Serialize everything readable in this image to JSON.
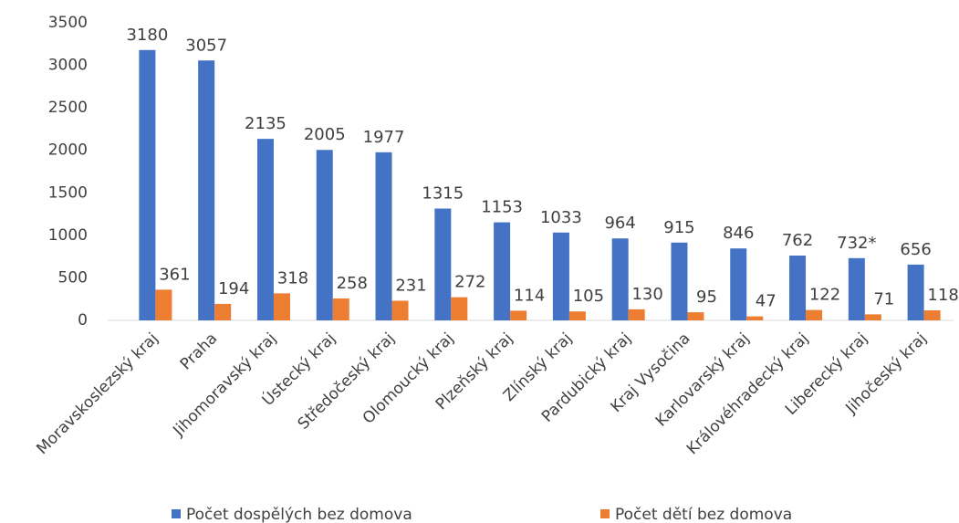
{
  "chart_data": {
    "type": "bar",
    "categories": [
      "Moravskoslezský kraj",
      "Praha",
      "Jihomoravský kraj",
      "Ústecký kraj",
      "Středočeský kraj",
      "Olomoucký kraj",
      "Plzeňský kraj",
      "Zlínský kraj",
      "Pardubický kraj",
      "Kraj Vysočina",
      "Karlovarský kraj",
      "Královéhradecký kraj",
      "Liberecký kraj",
      "Jihočeský kraj"
    ],
    "series": [
      {
        "name": "Počet dospělých bez domova",
        "color": "#4472c4",
        "values": [
          3180,
          3057,
          2135,
          2005,
          1977,
          1315,
          1153,
          1033,
          964,
          915,
          846,
          762,
          732,
          656
        ],
        "value_labels": [
          "3180",
          "3057",
          "2135",
          "2005",
          "1977",
          "1315",
          "1153",
          "1033",
          "964",
          "915",
          "846",
          "762",
          "732*",
          "656"
        ]
      },
      {
        "name": "Počet dětí bez domova",
        "color": "#ed7d31",
        "values": [
          361,
          194,
          318,
          258,
          231,
          272,
          114,
          105,
          130,
          95,
          47,
          122,
          71,
          118
        ]
      }
    ],
    "ylim": [
      0,
      3500
    ],
    "yticks": [
      0,
      500,
      1000,
      1500,
      2000,
      2500,
      3000,
      3500
    ],
    "grid": false,
    "legend": "bottom"
  }
}
